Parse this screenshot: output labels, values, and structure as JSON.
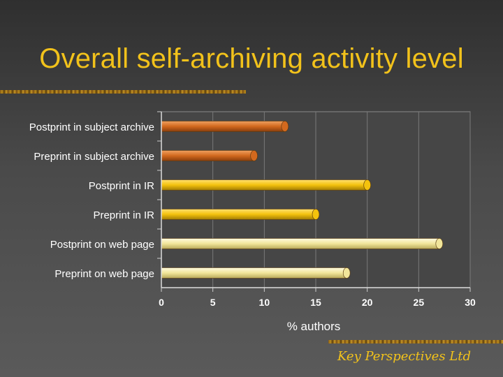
{
  "slide": {
    "title": "Overall self-archiving activity level",
    "footer": "Key Perspectives Ltd"
  },
  "colors": {
    "title": "#f2c21b",
    "bar_orange": "#d2691e",
    "bar_gold": "#f4c20d",
    "bar_pale": "#f1e59a",
    "axis_text": "#ffffff",
    "plot_bg": "#464646"
  },
  "chart_data": {
    "type": "bar",
    "orientation": "horizontal",
    "categories": [
      "Postprint in subject archive",
      "Preprint in subject archive",
      "Postprint in IR",
      "Preprint in IR",
      "Postprint on web page",
      "Preprint on web page"
    ],
    "values": [
      12,
      9,
      20,
      15,
      27,
      18
    ],
    "bar_colors": [
      "#d2691e",
      "#d2691e",
      "#f4c20d",
      "#f4c20d",
      "#f1e59a",
      "#f1e59a"
    ],
    "xlabel": "% authors",
    "ylabel": "",
    "xlim": [
      0,
      30
    ],
    "xticks": [
      0,
      5,
      10,
      15,
      20,
      25,
      30
    ],
    "grid": true
  }
}
